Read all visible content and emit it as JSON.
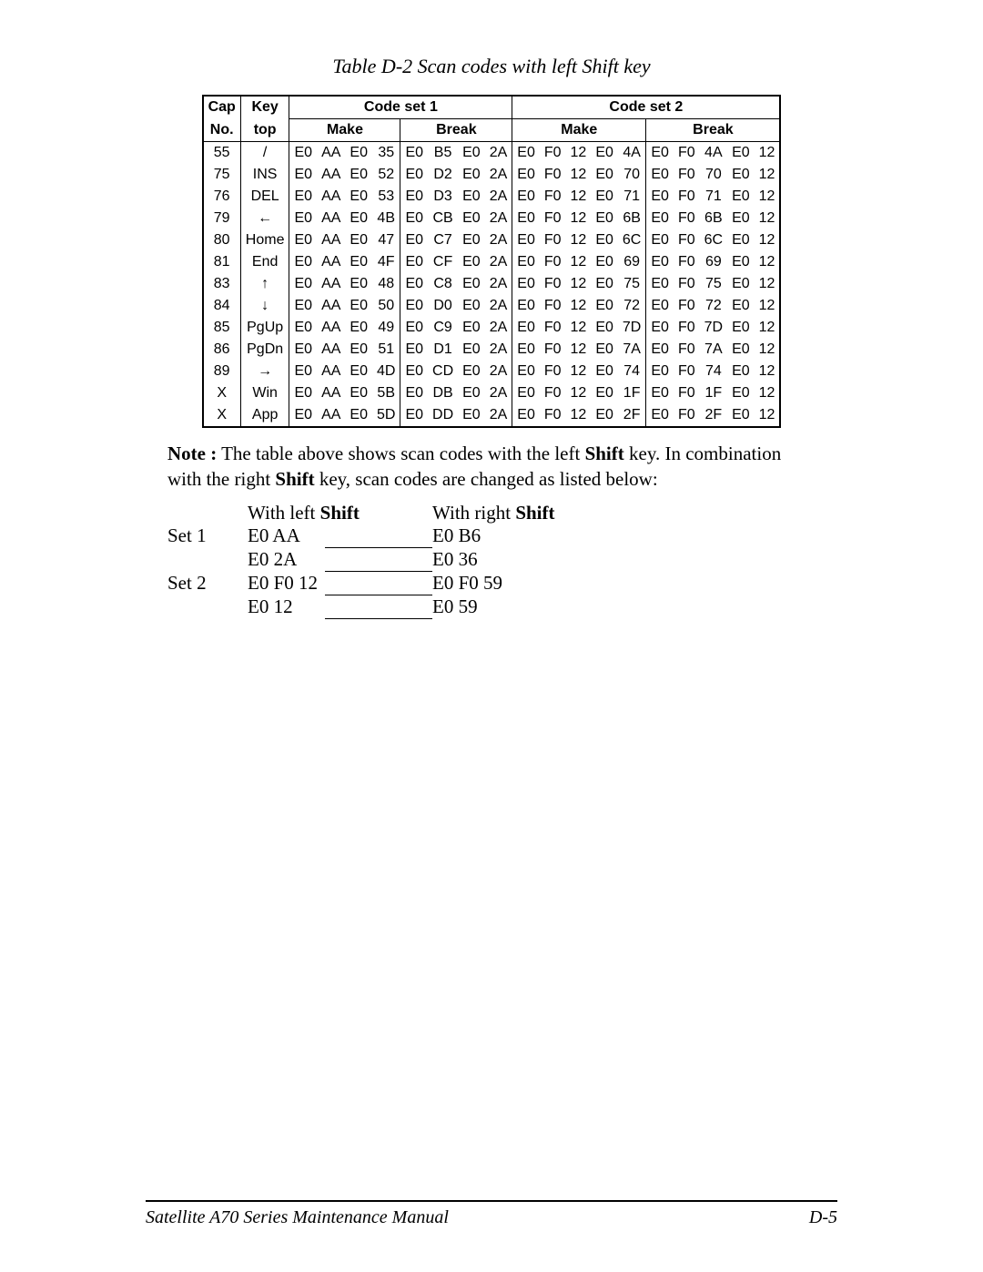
{
  "title": "Table D-2  Scan codes with left Shift key",
  "header": {
    "cap": "Cap",
    "no": "No.",
    "key": "Key",
    "top": "top",
    "set1": "Code set 1",
    "set2": "Code set 2",
    "make": "Make",
    "break": "Break"
  },
  "rows": [
    {
      "cap": "55",
      "key": "/",
      "s1m": [
        "E0",
        "AA",
        "E0",
        "35"
      ],
      "s1b": [
        "E0",
        "B5",
        "E0",
        "2A"
      ],
      "s2m": [
        "E0",
        "F0",
        "12",
        "E0",
        "4A"
      ],
      "s2b": [
        "E0",
        "F0",
        "4A",
        "E0",
        "12"
      ]
    },
    {
      "cap": "75",
      "key": "INS",
      "s1m": [
        "E0",
        "AA",
        "E0",
        "52"
      ],
      "s1b": [
        "E0",
        "D2",
        "E0",
        "2A"
      ],
      "s2m": [
        "E0",
        "F0",
        "12",
        "E0",
        "70"
      ],
      "s2b": [
        "E0",
        "F0",
        "70",
        "E0",
        "12"
      ]
    },
    {
      "cap": "76",
      "key": "DEL",
      "s1m": [
        "E0",
        "AA",
        "E0",
        "53"
      ],
      "s1b": [
        "E0",
        "D3",
        "E0",
        "2A"
      ],
      "s2m": [
        "E0",
        "F0",
        "12",
        "E0",
        "71"
      ],
      "s2b": [
        "E0",
        "F0",
        "71",
        "E0",
        "12"
      ]
    },
    {
      "cap": "79",
      "key": "←",
      "s1m": [
        "E0",
        "AA",
        "E0",
        "4B"
      ],
      "s1b": [
        "E0",
        "CB",
        "E0",
        "2A"
      ],
      "s2m": [
        "E0",
        "F0",
        "12",
        "E0",
        "6B"
      ],
      "s2b": [
        "E0",
        "F0",
        "6B",
        "E0",
        "12"
      ]
    },
    {
      "cap": "80",
      "key": "Home",
      "s1m": [
        "E0",
        "AA",
        "E0",
        "47"
      ],
      "s1b": [
        "E0",
        "C7",
        "E0",
        "2A"
      ],
      "s2m": [
        "E0",
        "F0",
        "12",
        "E0",
        "6C"
      ],
      "s2b": [
        "E0",
        "F0",
        "6C",
        "E0",
        "12"
      ]
    },
    {
      "cap": "81",
      "key": "End",
      "s1m": [
        "E0",
        "AA",
        "E0",
        "4F"
      ],
      "s1b": [
        "E0",
        "CF",
        "E0",
        "2A"
      ],
      "s2m": [
        "E0",
        "F0",
        "12",
        "E0",
        "69"
      ],
      "s2b": [
        "E0",
        "F0",
        "69",
        "E0",
        "12"
      ]
    },
    {
      "cap": "83",
      "key": "↑",
      "s1m": [
        "E0",
        "AA",
        "E0",
        "48"
      ],
      "s1b": [
        "E0",
        "C8",
        "E0",
        "2A"
      ],
      "s2m": [
        "E0",
        "F0",
        "12",
        "E0",
        "75"
      ],
      "s2b": [
        "E0",
        "F0",
        "75",
        "E0",
        "12"
      ]
    },
    {
      "cap": "84",
      "key": "↓",
      "s1m": [
        "E0",
        "AA",
        "E0",
        "50"
      ],
      "s1b": [
        "E0",
        "D0",
        "E0",
        "2A"
      ],
      "s2m": [
        "E0",
        "F0",
        "12",
        "E0",
        "72"
      ],
      "s2b": [
        "E0",
        "F0",
        "72",
        "E0",
        "12"
      ]
    },
    {
      "cap": "85",
      "key": "PgUp",
      "s1m": [
        "E0",
        "AA",
        "E0",
        "49"
      ],
      "s1b": [
        "E0",
        "C9",
        "E0",
        "2A"
      ],
      "s2m": [
        "E0",
        "F0",
        "12",
        "E0",
        "7D"
      ],
      "s2b": [
        "E0",
        "F0",
        "7D",
        "E0",
        "12"
      ]
    },
    {
      "cap": "86",
      "key": "PgDn",
      "s1m": [
        "E0",
        "AA",
        "E0",
        "51"
      ],
      "s1b": [
        "E0",
        "D1",
        "E0",
        "2A"
      ],
      "s2m": [
        "E0",
        "F0",
        "12",
        "E0",
        "7A"
      ],
      "s2b": [
        "E0",
        "F0",
        "7A",
        "E0",
        "12"
      ]
    },
    {
      "cap": "89",
      "key": "→",
      "s1m": [
        "E0",
        "AA",
        "E0",
        "4D"
      ],
      "s1b": [
        "E0",
        "CD",
        "E0",
        "2A"
      ],
      "s2m": [
        "E0",
        "F0",
        "12",
        "E0",
        "74"
      ],
      "s2b": [
        "E0",
        "F0",
        "74",
        "E0",
        "12"
      ]
    },
    {
      "cap": "X",
      "key": "Win",
      "s1m": [
        "E0",
        "AA",
        "E0",
        "5B"
      ],
      "s1b": [
        "E0",
        "DB",
        "E0",
        "2A"
      ],
      "s2m": [
        "E0",
        "F0",
        "12",
        "E0",
        "1F"
      ],
      "s2b": [
        "E0",
        "F0",
        "1F",
        "E0",
        "12"
      ]
    },
    {
      "cap": "X",
      "key": "App",
      "s1m": [
        "E0",
        "AA",
        "E0",
        "5D"
      ],
      "s1b": [
        "E0",
        "DD",
        "E0",
        "2A"
      ],
      "s2m": [
        "E0",
        "F0",
        "12",
        "E0",
        "2F"
      ],
      "s2b": [
        "E0",
        "F0",
        "2F",
        "E0",
        "12"
      ]
    }
  ],
  "note": {
    "lead": "Note :",
    "line1": " The table above shows scan codes with the left ",
    "shift1": "Shift",
    "line1b": " key.  In combination",
    "line2a": "with the right ",
    "shift2": "Shift",
    "line2b": " key, scan codes are changed as listed below:"
  },
  "shift_header": {
    "left": "With left ",
    "right": "With right ",
    "shift": "Shift"
  },
  "shift_rows": [
    {
      "label": "Set 1",
      "left": "E0  AA",
      "right": "E0  B6"
    },
    {
      "label": "",
      "left": "E0  2A",
      "right": "E0  36"
    },
    {
      "label": "Set 2",
      "left": "E0  F0  12",
      "right": "E0  F0  59"
    },
    {
      "label": "",
      "left": "E0  12",
      "right": "E0  59"
    }
  ],
  "footer": {
    "left": "Satellite A70 Series Maintenance Manual",
    "right": "D-5"
  },
  "styles": {
    "page_bg": "#ffffff",
    "border_color": "#000000",
    "title_fontsize": 22,
    "table_fontsize": 16,
    "note_fontsize": 21,
    "footer_fontsize": 20
  }
}
